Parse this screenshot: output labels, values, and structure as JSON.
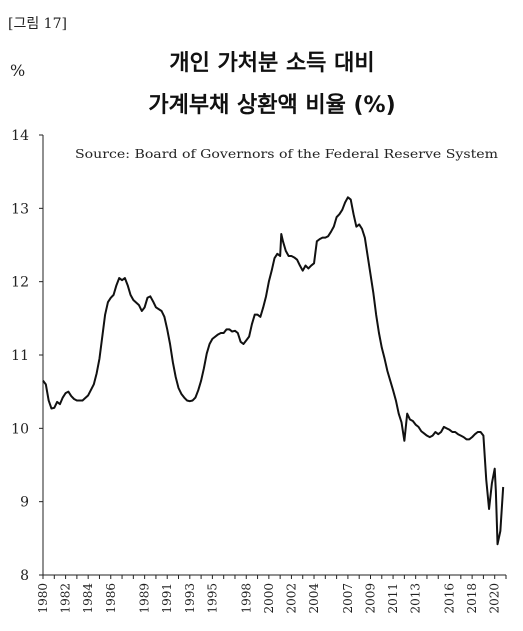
{
  "figure_label": "[그림 17]",
  "chart_data": {
    "type": "line",
    "title_line1": "개인 가처분 소득 대비",
    "title_line2": "가계부채 상환액 비율 (%)",
    "ylabel": "%",
    "source": "Source: Board of Governors of the Federal Reserve System",
    "ylim": [
      8,
      14
    ],
    "yticks": [
      "8",
      "9",
      "10",
      "11",
      "12",
      "13",
      "14"
    ],
    "xlim": [
      1980,
      2021
    ],
    "xticks": [
      "1980",
      "1982",
      "1984",
      "1986",
      "1989",
      "1991",
      "1993",
      "1995",
      "1998",
      "2000",
      "2002",
      "2004",
      "2007",
      "2009",
      "2011",
      "2013",
      "2016",
      "2018",
      "2020"
    ],
    "grid": false,
    "series": [
      {
        "points": [
          [
            1980.0,
            10.65
          ],
          [
            1980.25,
            10.6
          ],
          [
            1980.5,
            10.38
          ],
          [
            1980.75,
            10.27
          ],
          [
            1981.0,
            10.28
          ],
          [
            1981.25,
            10.36
          ],
          [
            1981.5,
            10.33
          ],
          [
            1981.75,
            10.42
          ],
          [
            1982.0,
            10.48
          ],
          [
            1982.25,
            10.5
          ],
          [
            1982.5,
            10.44
          ],
          [
            1982.75,
            10.4
          ],
          [
            1983.0,
            10.38
          ],
          [
            1983.5,
            10.38
          ],
          [
            1984.0,
            10.45
          ],
          [
            1984.5,
            10.6
          ],
          [
            1984.75,
            10.75
          ],
          [
            1985.0,
            10.95
          ],
          [
            1985.25,
            11.25
          ],
          [
            1985.5,
            11.55
          ],
          [
            1985.75,
            11.72
          ],
          [
            1986.0,
            11.78
          ],
          [
            1986.25,
            11.82
          ],
          [
            1986.5,
            11.95
          ],
          [
            1986.75,
            12.05
          ],
          [
            1987.0,
            12.02
          ],
          [
            1987.25,
            12.05
          ],
          [
            1987.5,
            11.95
          ],
          [
            1987.75,
            11.82
          ],
          [
            1988.0,
            11.75
          ],
          [
            1988.5,
            11.68
          ],
          [
            1988.75,
            11.6
          ],
          [
            1989.0,
            11.65
          ],
          [
            1989.25,
            11.78
          ],
          [
            1989.5,
            11.8
          ],
          [
            1989.75,
            11.73
          ],
          [
            1990.0,
            11.65
          ],
          [
            1990.5,
            11.6
          ],
          [
            1990.75,
            11.52
          ],
          [
            1991.0,
            11.35
          ],
          [
            1991.25,
            11.15
          ],
          [
            1991.5,
            10.9
          ],
          [
            1991.75,
            10.7
          ],
          [
            1992.0,
            10.55
          ],
          [
            1992.25,
            10.47
          ],
          [
            1992.5,
            10.42
          ],
          [
            1992.75,
            10.38
          ],
          [
            1993.0,
            10.37
          ],
          [
            1993.25,
            10.38
          ],
          [
            1993.5,
            10.42
          ],
          [
            1993.75,
            10.52
          ],
          [
            1994.0,
            10.65
          ],
          [
            1994.25,
            10.82
          ],
          [
            1994.5,
            11.02
          ],
          [
            1994.75,
            11.15
          ],
          [
            1995.0,
            11.22
          ],
          [
            1995.5,
            11.28
          ],
          [
            1995.75,
            11.3
          ],
          [
            1996.0,
            11.3
          ],
          [
            1996.25,
            11.35
          ],
          [
            1996.5,
            11.35
          ],
          [
            1996.75,
            11.32
          ],
          [
            1997.0,
            11.33
          ],
          [
            1997.25,
            11.3
          ],
          [
            1997.5,
            11.18
          ],
          [
            1997.75,
            11.15
          ],
          [
            1998.0,
            11.2
          ],
          [
            1998.25,
            11.25
          ],
          [
            1998.5,
            11.42
          ],
          [
            1998.75,
            11.55
          ],
          [
            1999.0,
            11.55
          ],
          [
            1999.25,
            11.52
          ],
          [
            1999.5,
            11.65
          ],
          [
            1999.75,
            11.8
          ],
          [
            2000.0,
            12.0
          ],
          [
            2000.25,
            12.15
          ],
          [
            2000.5,
            12.32
          ],
          [
            2000.75,
            12.38
          ],
          [
            2001.0,
            12.35
          ],
          [
            2001.1,
            12.65
          ],
          [
            2001.25,
            12.55
          ],
          [
            2001.5,
            12.42
          ],
          [
            2001.75,
            12.35
          ],
          [
            2002.0,
            12.35
          ],
          [
            2002.25,
            12.33
          ],
          [
            2002.5,
            12.3
          ],
          [
            2002.75,
            12.22
          ],
          [
            2003.0,
            12.15
          ],
          [
            2003.25,
            12.22
          ],
          [
            2003.5,
            12.18
          ],
          [
            2003.75,
            12.22
          ],
          [
            2004.0,
            12.25
          ],
          [
            2004.25,
            12.55
          ],
          [
            2004.5,
            12.58
          ],
          [
            2004.75,
            12.6
          ],
          [
            2005.0,
            12.6
          ],
          [
            2005.25,
            12.62
          ],
          [
            2005.5,
            12.68
          ],
          [
            2005.75,
            12.75
          ],
          [
            2006.0,
            12.88
          ],
          [
            2006.25,
            12.92
          ],
          [
            2006.5,
            12.98
          ],
          [
            2006.75,
            13.08
          ],
          [
            2007.0,
            13.15
          ],
          [
            2007.25,
            13.12
          ],
          [
            2007.5,
            12.92
          ],
          [
            2007.75,
            12.75
          ],
          [
            2008.0,
            12.78
          ],
          [
            2008.25,
            12.72
          ],
          [
            2008.5,
            12.6
          ],
          [
            2008.75,
            12.35
          ],
          [
            2009.0,
            12.1
          ],
          [
            2009.25,
            11.85
          ],
          [
            2009.5,
            11.55
          ],
          [
            2009.75,
            11.3
          ],
          [
            2010.0,
            11.1
          ],
          [
            2010.25,
            10.95
          ],
          [
            2010.5,
            10.78
          ],
          [
            2010.75,
            10.65
          ],
          [
            2011.0,
            10.52
          ],
          [
            2011.25,
            10.38
          ],
          [
            2011.5,
            10.2
          ],
          [
            2011.75,
            10.08
          ],
          [
            2012.0,
            9.83
          ],
          [
            2012.25,
            10.2
          ],
          [
            2012.5,
            10.12
          ],
          [
            2012.75,
            10.1
          ],
          [
            2013.0,
            10.05
          ],
          [
            2013.25,
            10.02
          ],
          [
            2013.5,
            9.96
          ],
          [
            2013.75,
            9.93
          ],
          [
            2014.0,
            9.9
          ],
          [
            2014.25,
            9.88
          ],
          [
            2014.5,
            9.9
          ],
          [
            2014.75,
            9.95
          ],
          [
            2015.0,
            9.92
          ],
          [
            2015.25,
            9.95
          ],
          [
            2015.5,
            10.02
          ],
          [
            2015.75,
            10.0
          ],
          [
            2016.0,
            9.98
          ],
          [
            2016.25,
            9.95
          ],
          [
            2016.5,
            9.95
          ],
          [
            2016.75,
            9.92
          ],
          [
            2017.0,
            9.9
          ],
          [
            2017.25,
            9.88
          ],
          [
            2017.5,
            9.85
          ],
          [
            2017.75,
            9.85
          ],
          [
            2018.0,
            9.88
          ],
          [
            2018.25,
            9.92
          ],
          [
            2018.5,
            9.95
          ],
          [
            2018.75,
            9.95
          ],
          [
            2019.0,
            9.9
          ],
          [
            2019.25,
            9.3
          ],
          [
            2019.5,
            8.9
          ],
          [
            2019.75,
            9.25
          ],
          [
            2020.0,
            9.45
          ],
          [
            2020.1,
            9.15
          ],
          [
            2020.25,
            8.42
          ],
          [
            2020.5,
            8.6
          ],
          [
            2020.75,
            9.2
          ]
        ]
      }
    ]
  }
}
